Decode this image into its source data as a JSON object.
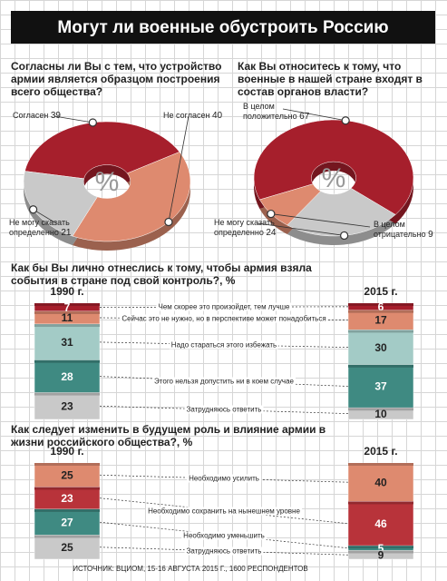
{
  "title": "Могут ли военные обустроить Россию",
  "source": "ИСТОЧНИК: ВЦИОМ, 15-16 АВГУСТА 2015 Г., 1600 РЕСПОНДЕНТОВ",
  "chart_data": [
    {
      "type": "pie",
      "title": "Согласны ли Вы с тем, что устройство армии является образцом построения всего общества?",
      "center_label": "%",
      "categories": [
        "Согласен",
        "Не согласен",
        "Не могу сказать определенно"
      ],
      "values": [
        39,
        40,
        21
      ],
      "colors": [
        "#a61f2c",
        "#de8a6f",
        "#c9c9c9"
      ]
    },
    {
      "type": "pie",
      "title": "Как Вы относитесь к тому, что военные в нашей стране входят в состав органов власти?",
      "center_label": "%",
      "categories": [
        "В целом положительно",
        "Не могу сказать определенно",
        "В целом отрицательно"
      ],
      "values": [
        67,
        24,
        9
      ],
      "colors": [
        "#a61f2c",
        "#c9c9c9",
        "#de8a6f"
      ]
    },
    {
      "type": "stacked-bar",
      "title": "Как бы Вы лично отнеслись к тому, чтобы армия взяла события в стране под свой контроль?, %",
      "categories": [
        "1990 г.",
        "2015 г."
      ],
      "series": [
        {
          "name": "Чем скорее это произойдет, тем лучше",
          "color": "#a61f2c",
          "values": [
            7,
            6
          ]
        },
        {
          "name": "Сейчас это не нужно, но в перспективе может понадобиться",
          "color": "#de8a6f",
          "values": [
            11,
            17
          ]
        },
        {
          "name": "Надо стараться этого избежать",
          "color": "#a3cbc6",
          "values": [
            31,
            30
          ]
        },
        {
          "name": "Этого нельзя допустить ни в коем случае",
          "color": "#3f8a82",
          "values": [
            28,
            37
          ]
        },
        {
          "name": "Затрудняюсь ответить",
          "color": "#c9c9c9",
          "values": [
            23,
            10
          ]
        }
      ]
    },
    {
      "type": "stacked-bar",
      "title": "Как следует изменить в будущем роль и влияние армии в жизни российского общества?, %",
      "categories": [
        "1990 г.",
        "2015 г."
      ],
      "series": [
        {
          "name": "Необходимо усилить",
          "color": "#de8a6f",
          "values": [
            25,
            40
          ]
        },
        {
          "name": "Необходимо сохранить на нынешнем уровне",
          "color": "#b8333a",
          "values": [
            23,
            46
          ]
        },
        {
          "name": "Необходимо уменьшить",
          "color": "#3f8a82",
          "values": [
            27,
            5
          ]
        },
        {
          "name": "Затрудняюсь ответить",
          "color": "#c9c9c9",
          "values": [
            25,
            9
          ]
        }
      ]
    }
  ]
}
